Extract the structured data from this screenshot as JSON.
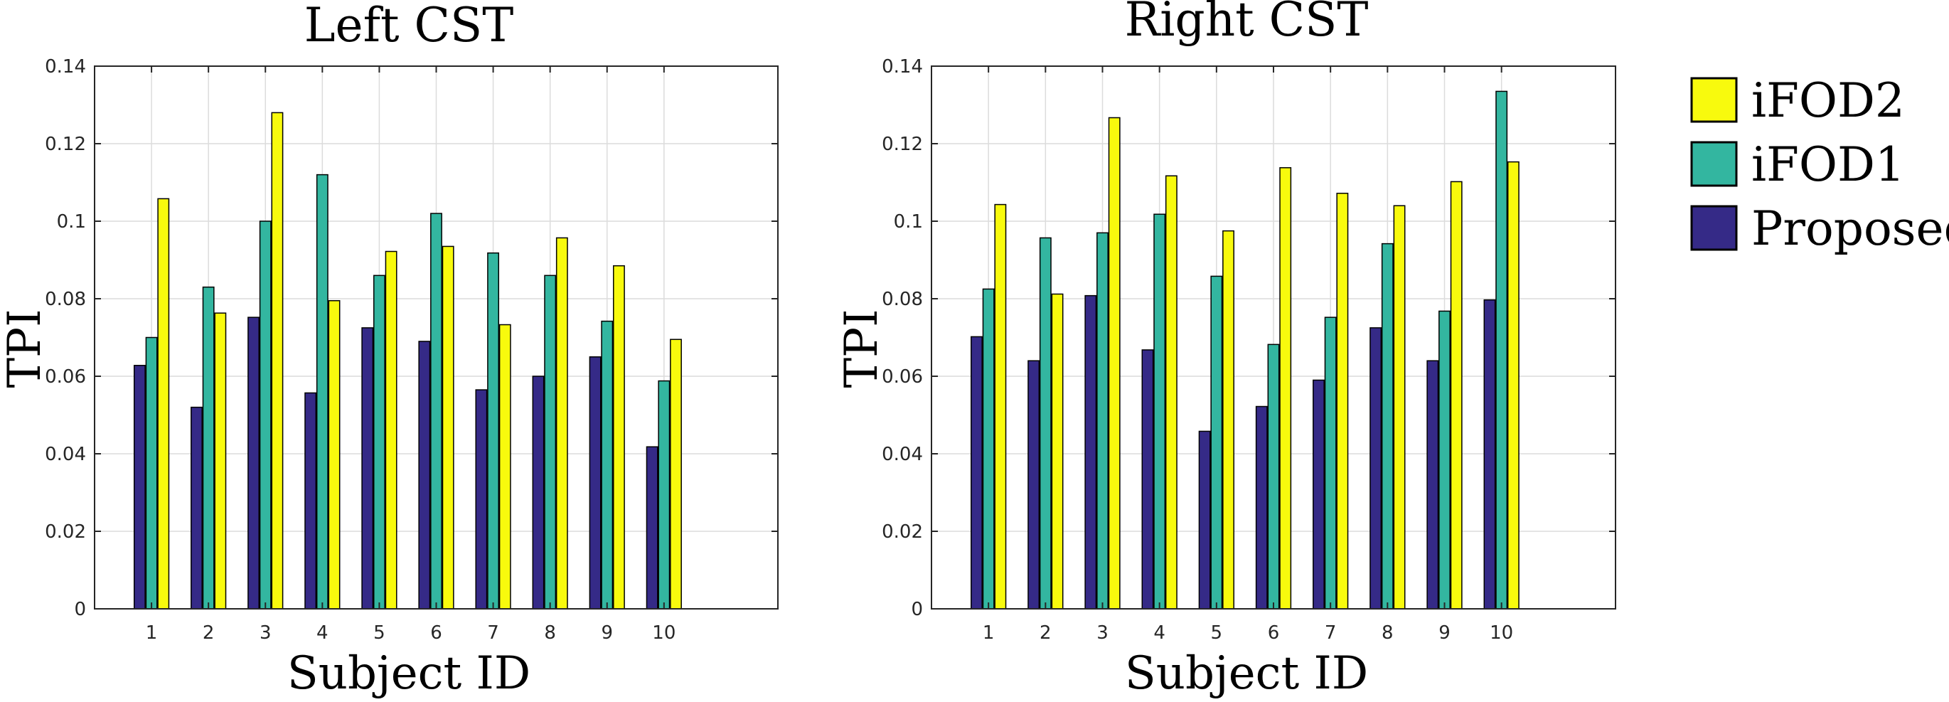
{
  "chart_data": [
    {
      "type": "bar",
      "title": "Left CST",
      "xlabel": "Subject ID",
      "ylabel": "TPI",
      "ylim": [
        0,
        0.14
      ],
      "xlim": [
        0,
        12
      ],
      "yticks": [
        "0",
        "0.02",
        "0.04",
        "0.06",
        "0.08",
        "0.1",
        "0.12",
        "0.14"
      ],
      "categories": [
        "1",
        "2",
        "3",
        "4",
        "5",
        "6",
        "7",
        "8",
        "9",
        "10"
      ],
      "grid": true,
      "series": [
        {
          "name": "Proposed",
          "color": "#352a87",
          "values": [
            0.0628,
            0.052,
            0.0752,
            0.0557,
            0.0725,
            0.069,
            0.0565,
            0.06,
            0.065,
            0.0418
          ]
        },
        {
          "name": "iFOD1",
          "color": "#33b6a0",
          "values": [
            0.07,
            0.083,
            0.1,
            0.112,
            0.086,
            0.102,
            0.0918,
            0.086,
            0.0742,
            0.0588
          ]
        },
        {
          "name": "iFOD2",
          "color": "#f8fa0d",
          "values": [
            0.1058,
            0.0763,
            0.128,
            0.0795,
            0.0922,
            0.0935,
            0.0733,
            0.0957,
            0.0885,
            0.0695
          ]
        }
      ]
    },
    {
      "type": "bar",
      "title": "Right CST",
      "xlabel": "Subject ID",
      "ylabel": "TPI",
      "ylim": [
        0,
        0.14
      ],
      "xlim": [
        0,
        12
      ],
      "yticks": [
        "0",
        "0.02",
        "0.04",
        "0.06",
        "0.08",
        "0.1",
        "0.12",
        "0.14"
      ],
      "categories": [
        "1",
        "2",
        "3",
        "4",
        "5",
        "6",
        "7",
        "8",
        "9",
        "10"
      ],
      "grid": true,
      "series": [
        {
          "name": "Proposed",
          "color": "#352a87",
          "values": [
            0.0702,
            0.064,
            0.0808,
            0.0668,
            0.0458,
            0.0522,
            0.059,
            0.0725,
            0.064,
            0.0797
          ]
        },
        {
          "name": "iFOD1",
          "color": "#33b6a0",
          "values": [
            0.0825,
            0.0957,
            0.097,
            0.1018,
            0.0858,
            0.0682,
            0.0752,
            0.0942,
            0.0768,
            0.1335
          ]
        },
        {
          "name": "iFOD2",
          "color": "#f8fa0d",
          "values": [
            0.1043,
            0.0812,
            0.1267,
            0.1117,
            0.0975,
            0.1138,
            0.1072,
            0.104,
            0.1102,
            0.1153
          ]
        }
      ]
    }
  ],
  "legend": {
    "placement": "right",
    "entries": [
      {
        "label": "iFOD2",
        "color": "#f8fa0d"
      },
      {
        "label": "iFOD1",
        "color": "#33b6a0"
      },
      {
        "label": "Proposed",
        "color": "#352a87"
      }
    ]
  }
}
